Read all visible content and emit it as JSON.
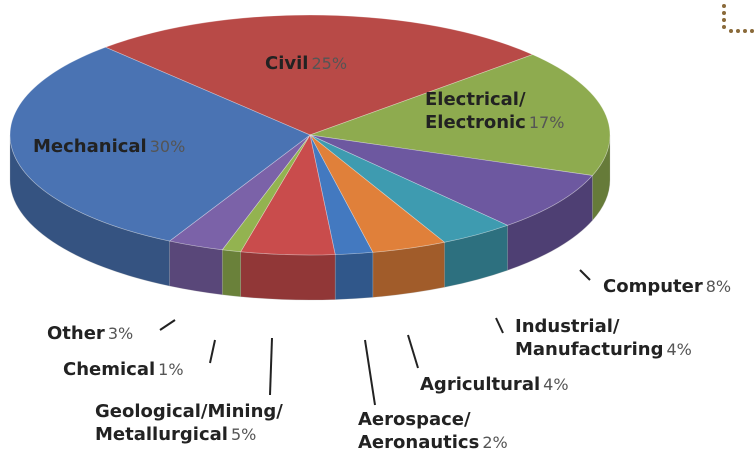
{
  "chart_data": {
    "type": "pie3d",
    "categories": [
      "Civil",
      "Electrical/\nElectronic",
      "Computer",
      "Industrial/\nManufacturing",
      "Agricultural",
      "Aerospace/\nAeronautics",
      "Geological/Mining/\nMetallurgical",
      "Chemical",
      "Other",
      "Mechanical"
    ],
    "values": [
      25,
      17,
      8,
      4,
      4,
      2,
      5,
      1,
      3,
      30
    ],
    "value_labels": [
      "25%",
      "17%",
      "8%",
      "4%",
      "4%",
      "2%",
      "5%",
      "1%",
      "3%",
      "30%"
    ],
    "colors": [
      "#b84a47",
      "#8eab4f",
      "#6d58a0",
      "#3e9bb0",
      "#e0803a",
      "#4379c0",
      "#c94c4c",
      "#93b350",
      "#7b62a8",
      "#4a73b3"
    ]
  }
}
